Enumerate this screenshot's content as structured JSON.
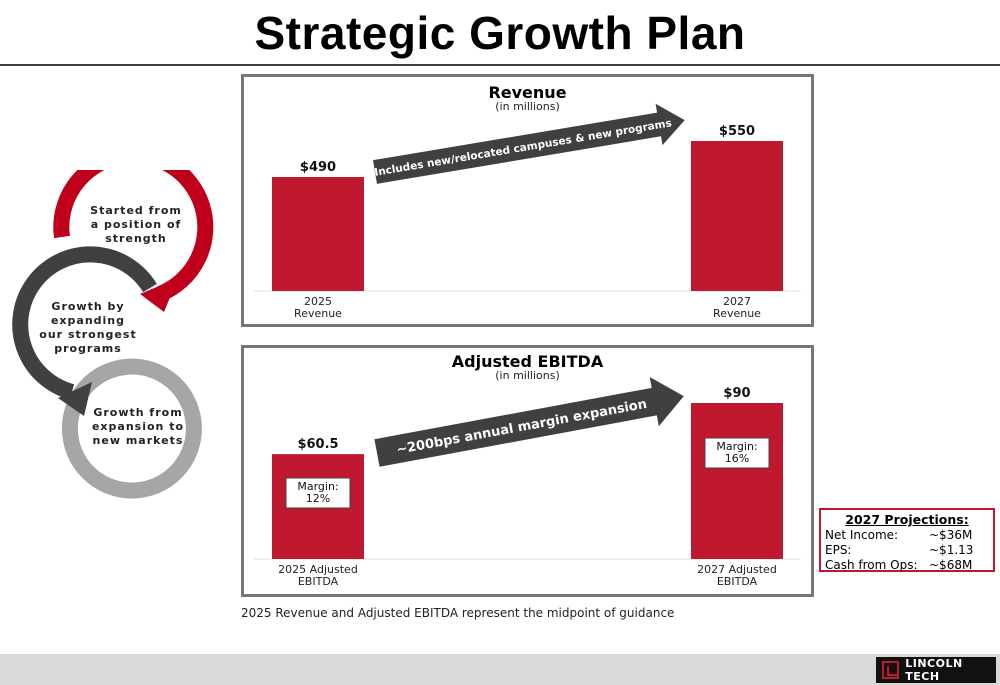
{
  "page": {
    "title": "Strategic Growth Plan",
    "footnote": "2025 Revenue and Adjusted EBITDA represent the midpoint of guidance"
  },
  "cycle": {
    "steps": [
      {
        "lines": [
          "Started from",
          "a position of",
          "strength"
        ],
        "color": "#c0001a"
      },
      {
        "lines": [
          "Growth by",
          "expanding",
          "our strongest",
          "programs"
        ],
        "color": "#404040"
      },
      {
        "lines": [
          "Growth from",
          "expansion to",
          "new markets"
        ],
        "color": "#a6a6a6"
      }
    ]
  },
  "chart_data": [
    {
      "type": "bar",
      "title": "Revenue",
      "subtitle": "(in millions)",
      "categories": [
        [
          "2025",
          "Revenue"
        ],
        [
          "2027",
          "Revenue"
        ]
      ],
      "values": [
        490,
        550
      ],
      "value_labels": [
        "$490",
        "$550"
      ],
      "bar_color": "#c0182f",
      "arrow_text": "Includes new/relocated campuses & new programs",
      "grid": false
    },
    {
      "type": "bar",
      "title": "Adjusted EBITDA",
      "subtitle": "(in millions)",
      "categories": [
        [
          "2025 Adjusted",
          "EBITDA"
        ],
        [
          "2027 Adjusted",
          "EBITDA"
        ]
      ],
      "values": [
        60.5,
        90
      ],
      "value_labels": [
        "$60.5",
        "$90"
      ],
      "annotations": [
        [
          "Margin:",
          "12%"
        ],
        [
          "Margin:",
          "16%"
        ]
      ],
      "bar_color": "#c0182f",
      "arrow_text": "~200bps annual margin expansion",
      "grid": false
    }
  ],
  "projections": {
    "title": "2027 Projections:",
    "rows": [
      {
        "label": "Net Income:",
        "value": "~$36M"
      },
      {
        "label": "EPS:",
        "value": "~$1.13"
      },
      {
        "label": "Cash from Ops:",
        "value": "~$68M"
      }
    ]
  },
  "logo": {
    "text": "LINCOLN TECH",
    "colors": {
      "background": "#111111",
      "accent": "#c0182f"
    }
  },
  "colors": {
    "bar": "#c0182f",
    "arrow": "#404040",
    "panel_border": "#777777",
    "footer": "#d9d9d9"
  }
}
